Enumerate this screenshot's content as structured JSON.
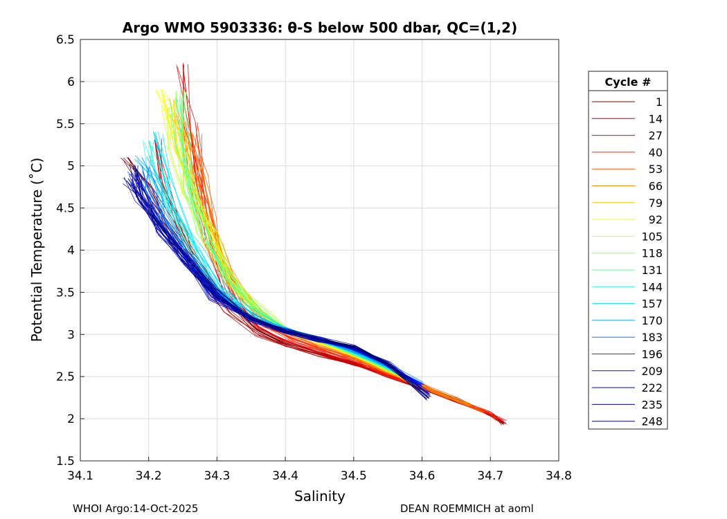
{
  "chart_data": {
    "type": "line",
    "title": "Argo WMO 5903336: θ-S below 500 dbar,  QC=(1,2)",
    "xlabel": "Salinity",
    "ylabel": "Potential Temperature (˚C)",
    "xlim": [
      34.1,
      34.8
    ],
    "ylim": [
      1.5,
      6.5
    ],
    "xticks": [
      "34.1",
      "34.2",
      "34.3",
      "34.4",
      "34.5",
      "34.6",
      "34.7",
      "34.8"
    ],
    "yticks": [
      "1.5",
      "2",
      "2.5",
      "3",
      "3.5",
      "4",
      "4.5",
      "5",
      "5.5",
      "6",
      "6.5"
    ],
    "grid": true,
    "legend_title": "Cycle #",
    "legend_position": "right",
    "series": [
      {
        "name": "1",
        "color": "#800000",
        "x": [
          34.17,
          34.2,
          34.23,
          34.27,
          34.32,
          34.36,
          34.4,
          34.45,
          34.5,
          34.55,
          34.6,
          34.65,
          34.7,
          34.72
        ],
        "y": [
          5.1,
          4.75,
          4.3,
          3.85,
          3.35,
          3.05,
          2.9,
          2.78,
          2.66,
          2.52,
          2.37,
          2.22,
          2.06,
          1.95
        ]
      },
      {
        "name": "14",
        "color": "#b00000",
        "x": [
          34.21,
          34.22,
          34.25,
          34.28,
          34.32,
          34.36,
          34.4,
          34.45,
          34.5,
          34.55,
          34.6,
          34.65,
          34.7,
          34.72
        ],
        "y": [
          5.3,
          4.8,
          4.2,
          3.7,
          3.25,
          3.0,
          2.88,
          2.76,
          2.64,
          2.51,
          2.36,
          2.21,
          2.05,
          1.94
        ]
      },
      {
        "name": "27",
        "color": "#e00000",
        "x": [
          34.25,
          34.26,
          34.27,
          34.29,
          34.32,
          34.36,
          34.4,
          34.45,
          34.5,
          34.55,
          34.6,
          34.65,
          34.7,
          34.72
        ],
        "y": [
          6.2,
          5.5,
          4.8,
          4.1,
          3.5,
          3.1,
          2.92,
          2.79,
          2.66,
          2.52,
          2.37,
          2.22,
          2.06,
          1.96
        ]
      },
      {
        "name": "40",
        "color": "#ff2400",
        "x": [
          34.26,
          34.27,
          34.28,
          34.3,
          34.33,
          34.37,
          34.41,
          34.45,
          34.5,
          34.55,
          34.6,
          34.65,
          34.7,
          34.71
        ],
        "y": [
          5.5,
          5.0,
          4.5,
          3.9,
          3.4,
          3.1,
          2.95,
          2.83,
          2.69,
          2.53,
          2.38,
          2.22,
          2.07,
          1.99
        ]
      },
      {
        "name": "53",
        "color": "#ff5a00",
        "x": [
          34.27,
          34.28,
          34.29,
          34.31,
          34.34,
          34.37,
          34.41,
          34.45,
          34.5,
          34.55,
          34.6,
          34.65,
          34.69
        ],
        "y": [
          5.4,
          4.9,
          4.4,
          3.9,
          3.45,
          3.15,
          2.98,
          2.86,
          2.72,
          2.55,
          2.39,
          2.23,
          2.08
        ]
      },
      {
        "name": "66",
        "color": "#ff9000",
        "x": [
          34.24,
          34.26,
          34.28,
          34.3,
          34.33,
          34.37,
          34.41,
          34.46,
          34.5,
          34.55,
          34.6,
          34.64,
          34.67
        ],
        "y": [
          5.6,
          5.1,
          4.6,
          4.05,
          3.55,
          3.2,
          3.0,
          2.88,
          2.74,
          2.56,
          2.39,
          2.26,
          2.16
        ]
      },
      {
        "name": "79",
        "color": "#ffc600",
        "x": [
          34.23,
          34.25,
          34.27,
          34.29,
          34.32,
          34.36,
          34.4,
          34.45,
          34.5,
          34.55,
          34.59
        ],
        "y": [
          5.8,
          5.2,
          4.6,
          4.1,
          3.6,
          3.25,
          3.03,
          2.9,
          2.75,
          2.57,
          2.42
        ]
      },
      {
        "name": "92",
        "color": "#fcff02",
        "x": [
          34.22,
          34.24,
          34.26,
          34.29,
          34.32,
          34.36,
          34.4,
          34.45,
          34.5,
          34.55,
          34.59
        ],
        "y": [
          5.9,
          5.3,
          4.7,
          4.15,
          3.65,
          3.28,
          3.05,
          2.91,
          2.76,
          2.58,
          2.43
        ]
      },
      {
        "name": "105",
        "color": "#c6ff38",
        "x": [
          34.23,
          34.24,
          34.26,
          34.29,
          34.32,
          34.36,
          34.4,
          34.45,
          34.5,
          34.55,
          34.59
        ],
        "y": [
          5.7,
          5.2,
          4.7,
          4.2,
          3.7,
          3.3,
          3.06,
          2.92,
          2.77,
          2.58,
          2.43
        ]
      },
      {
        "name": "118",
        "color": "#90ff6e",
        "x": [
          34.25,
          34.25,
          34.26,
          34.28,
          34.32,
          34.36,
          34.4,
          34.45,
          34.5,
          34.55,
          34.59
        ],
        "y": [
          5.9,
          5.3,
          4.8,
          4.2,
          3.65,
          3.3,
          3.07,
          2.93,
          2.78,
          2.59,
          2.43
        ]
      },
      {
        "name": "131",
        "color": "#5aff90",
        "x": [
          34.24,
          34.25,
          34.26,
          34.28,
          34.31,
          34.35,
          34.4,
          34.45,
          34.5,
          34.55,
          34.59
        ],
        "y": [
          5.8,
          5.2,
          4.7,
          4.2,
          3.7,
          3.35,
          3.08,
          2.94,
          2.79,
          2.6,
          2.43
        ]
      },
      {
        "name": "144",
        "color": "#24ffd8",
        "x": [
          34.2,
          34.21,
          34.23,
          34.26,
          34.3,
          34.35,
          34.4,
          34.45,
          34.5,
          34.55,
          34.59
        ],
        "y": [
          5.3,
          4.9,
          4.5,
          4.0,
          3.55,
          3.25,
          3.06,
          2.93,
          2.79,
          2.6,
          2.43
        ]
      },
      {
        "name": "157",
        "color": "#00e4ff",
        "x": [
          34.21,
          34.22,
          34.24,
          34.27,
          34.31,
          34.35,
          34.4,
          34.45,
          34.5,
          34.55,
          34.59
        ],
        "y": [
          5.4,
          4.95,
          4.5,
          4.0,
          3.55,
          3.25,
          3.07,
          2.94,
          2.8,
          2.61,
          2.43
        ]
      },
      {
        "name": "170",
        "color": "#00aeff",
        "x": [
          34.19,
          34.21,
          34.23,
          34.26,
          34.3,
          34.35,
          34.4,
          34.45,
          34.5,
          34.55,
          34.59
        ],
        "y": [
          5.1,
          4.8,
          4.4,
          3.95,
          3.5,
          3.22,
          3.06,
          2.94,
          2.81,
          2.62,
          2.43
        ]
      },
      {
        "name": "183",
        "color": "#0078ff",
        "x": [
          34.19,
          34.2,
          34.23,
          34.26,
          34.3,
          34.35,
          34.4,
          34.45,
          34.5,
          34.55,
          34.6
        ],
        "y": [
          5.0,
          4.7,
          4.3,
          3.9,
          3.48,
          3.2,
          3.05,
          2.94,
          2.82,
          2.63,
          2.42
        ]
      },
      {
        "name": "196",
        "color": "#0042ff",
        "x": [
          34.18,
          34.2,
          34.22,
          34.26,
          34.3,
          34.35,
          34.4,
          34.45,
          34.5,
          34.55,
          34.6
        ],
        "y": [
          4.95,
          4.65,
          4.3,
          3.88,
          3.46,
          3.19,
          3.05,
          2.94,
          2.83,
          2.64,
          2.4
        ]
      },
      {
        "name": "209",
        "color": "#000cff",
        "x": [
          34.18,
          34.19,
          34.22,
          34.26,
          34.3,
          34.35,
          34.4,
          34.45,
          34.5,
          34.55,
          34.6
        ],
        "y": [
          4.9,
          4.6,
          4.25,
          3.85,
          3.45,
          3.18,
          3.04,
          2.94,
          2.83,
          2.64,
          2.38
        ]
      },
      {
        "name": "222",
        "color": "#0000d2",
        "x": [
          34.17,
          34.19,
          34.22,
          34.26,
          34.3,
          34.35,
          34.4,
          34.45,
          34.5,
          34.55,
          34.61
        ],
        "y": [
          4.85,
          4.6,
          4.25,
          3.85,
          3.44,
          3.18,
          3.04,
          2.94,
          2.84,
          2.65,
          2.3
        ]
      },
      {
        "name": "235",
        "color": "#00009c",
        "x": [
          34.17,
          34.19,
          34.22,
          34.26,
          34.3,
          34.35,
          34.4,
          34.45,
          34.5,
          34.55,
          34.61
        ],
        "y": [
          4.8,
          4.55,
          4.2,
          3.82,
          3.43,
          3.17,
          3.03,
          2.93,
          2.84,
          2.65,
          2.25
        ]
      },
      {
        "name": "248",
        "color": "#000066",
        "x": [
          34.18,
          34.19,
          34.22,
          34.26,
          34.3,
          34.35,
          34.4,
          34.45,
          34.5,
          34.55,
          34.61
        ],
        "y": [
          5.0,
          4.62,
          4.28,
          3.88,
          3.47,
          3.2,
          3.05,
          2.95,
          2.85,
          2.66,
          2.24
        ]
      }
    ]
  },
  "footer": {
    "left": "WHOI Argo:14-Oct-2025",
    "right": "DEAN ROEMMICH at aoml"
  }
}
